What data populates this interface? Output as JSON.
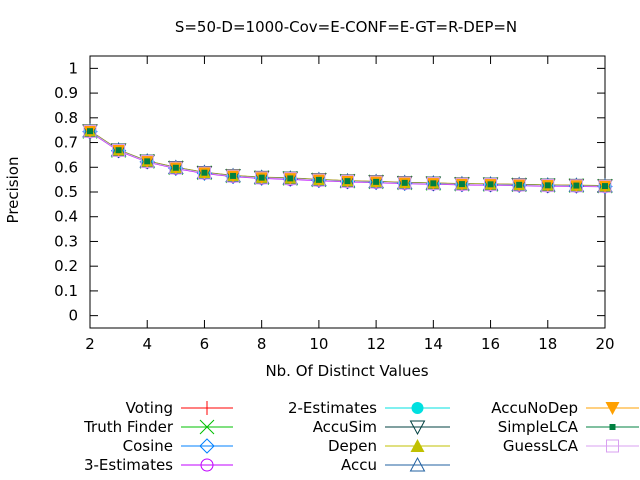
{
  "chart_data": {
    "type": "line",
    "title": "S=50-D=1000-Cov=E-CONF=E-GT=R-DEP=N",
    "xlabel": "Nb. Of Distinct Values",
    "ylabel": "Precision",
    "xlim": [
      2,
      20
    ],
    "ylim": [
      -0.05,
      1.05
    ],
    "xticks": [
      2,
      4,
      6,
      8,
      10,
      12,
      14,
      16,
      18,
      20
    ],
    "yticks": [
      0,
      0.1,
      0.2,
      0.3,
      0.4,
      0.5,
      0.6,
      0.7,
      0.8,
      0.9,
      1
    ],
    "grid": false,
    "legend_position": "bottom",
    "x": [
      2,
      3,
      4,
      5,
      6,
      7,
      8,
      9,
      10,
      11,
      12,
      13,
      14,
      15,
      16,
      17,
      18,
      19,
      20
    ],
    "series": [
      {
        "name": "Voting",
        "color": "#ff0000",
        "marker": "plus",
        "values": [
          0.745,
          0.668,
          0.623,
          0.597,
          0.577,
          0.564,
          0.557,
          0.553,
          0.548,
          0.543,
          0.54,
          0.536,
          0.534,
          0.531,
          0.53,
          0.528,
          0.526,
          0.525,
          0.523
        ]
      },
      {
        "name": "Truth Finder",
        "color": "#00c000",
        "marker": "cross",
        "values": [
          0.745,
          0.668,
          0.624,
          0.598,
          0.578,
          0.565,
          0.558,
          0.555,
          0.549,
          0.544,
          0.541,
          0.537,
          0.535,
          0.532,
          0.531,
          0.529,
          0.527,
          0.526,
          0.524
        ]
      },
      {
        "name": "Cosine",
        "color": "#0080ff",
        "marker": "diamond",
        "values": [
          0.744,
          0.667,
          0.622,
          0.596,
          0.576,
          0.563,
          0.556,
          0.552,
          0.547,
          0.542,
          0.539,
          0.535,
          0.533,
          0.53,
          0.529,
          0.527,
          0.525,
          0.524,
          0.522
        ]
      },
      {
        "name": "3-Estimates",
        "color": "#c000ff",
        "marker": "circle",
        "values": [
          0.743,
          0.666,
          0.621,
          0.595,
          0.575,
          0.562,
          0.555,
          0.551,
          0.546,
          0.541,
          0.538,
          0.534,
          0.532,
          0.529,
          0.528,
          0.526,
          0.524,
          0.523,
          0.521
        ]
      },
      {
        "name": "2-Estimates",
        "color": "#00e0e0",
        "marker": "circle-filled",
        "values": [
          0.746,
          0.669,
          0.624,
          0.598,
          0.578,
          0.565,
          0.558,
          0.555,
          0.549,
          0.544,
          0.541,
          0.537,
          0.535,
          0.532,
          0.531,
          0.529,
          0.527,
          0.526,
          0.524
        ]
      },
      {
        "name": "AccuSim",
        "color": "#004040",
        "marker": "triangle-down",
        "values": [
          0.747,
          0.67,
          0.625,
          0.599,
          0.579,
          0.566,
          0.559,
          0.556,
          0.55,
          0.545,
          0.542,
          0.538,
          0.536,
          0.533,
          0.532,
          0.53,
          0.528,
          0.527,
          0.525
        ]
      },
      {
        "name": "Depen",
        "color": "#c0c000",
        "marker": "triangle-filled",
        "values": [
          0.748,
          0.671,
          0.626,
          0.6,
          0.58,
          0.567,
          0.56,
          0.557,
          0.551,
          0.546,
          0.543,
          0.539,
          0.537,
          0.534,
          0.533,
          0.531,
          0.529,
          0.528,
          0.526
        ]
      },
      {
        "name": "Accu",
        "color": "#2060a0",
        "marker": "triangle",
        "values": [
          0.747,
          0.67,
          0.625,
          0.599,
          0.579,
          0.566,
          0.559,
          0.556,
          0.55,
          0.545,
          0.542,
          0.538,
          0.536,
          0.533,
          0.532,
          0.53,
          0.528,
          0.527,
          0.525
        ]
      },
      {
        "name": "AccuNoDep",
        "color": "#ffa000",
        "marker": "triangle-down-filled",
        "values": [
          0.747,
          0.67,
          0.625,
          0.599,
          0.579,
          0.566,
          0.559,
          0.556,
          0.55,
          0.545,
          0.542,
          0.538,
          0.536,
          0.533,
          0.532,
          0.53,
          0.528,
          0.527,
          0.525
        ]
      },
      {
        "name": "SimpleLCA",
        "color": "#008040",
        "marker": "square-filled",
        "values": [
          0.746,
          0.669,
          0.624,
          0.598,
          0.578,
          0.565,
          0.558,
          0.555,
          0.549,
          0.544,
          0.541,
          0.537,
          0.535,
          0.532,
          0.531,
          0.529,
          0.527,
          0.526,
          0.524
        ]
      },
      {
        "name": "GuessLCA",
        "color": "#d8a0f0",
        "marker": "square",
        "values": [
          0.745,
          0.668,
          0.623,
          0.597,
          0.577,
          0.564,
          0.557,
          0.554,
          0.548,
          0.543,
          0.54,
          0.536,
          0.534,
          0.531,
          0.53,
          0.528,
          0.526,
          0.525,
          0.523
        ]
      }
    ]
  }
}
